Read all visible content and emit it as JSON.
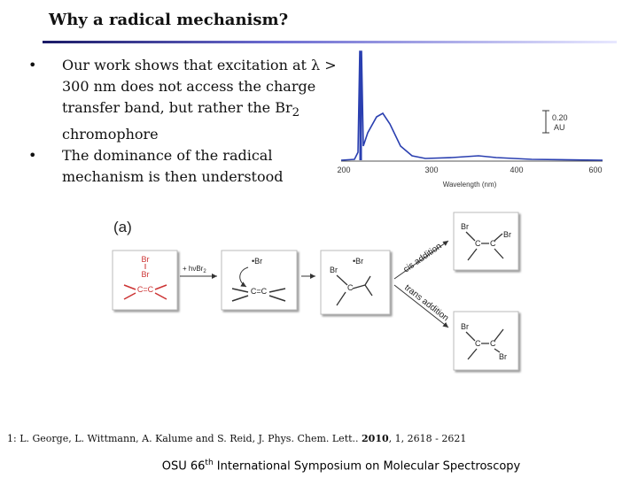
{
  "slide": {
    "title": "Why a radical mechanism?",
    "bullets": [
      {
        "text": "Our work shows that excitation at λ > 300 nm does not access the charge transfer band, but rather the Br",
        "sub": "2",
        "tail": " chromophore"
      },
      {
        "text": "The dominance of the radical mechanism is then understood"
      }
    ],
    "spectrum": {
      "x_tick_labels": [
        "200",
        "300",
        "400",
        "600"
      ],
      "x_label": "Wavelength (nm)",
      "scale_value": "0.20",
      "scale_unit": "AU"
    },
    "scheme": {
      "panel_label": "(a)",
      "reactant": {
        "br_top": "Br",
        "br_bottom": "Br",
        "carbons": "C=C"
      },
      "step1": {
        "text": "+ hν",
        "br": "Br",
        "sub": "2"
      },
      "intermediate1": {
        "radical": "•Br",
        "carbons": "C=C"
      },
      "intermediate2": {
        "br": "Br",
        "radical": "•Br",
        "carbon": "C"
      },
      "cis_label": "cis addition",
      "trans_label": "trans addition",
      "cis_product": {
        "br_left": "Br",
        "br_right": "Br",
        "c1": "C",
        "c2": "C"
      },
      "trans_product": {
        "br_top": "Br",
        "br_bottom": "Br",
        "c1": "C",
        "c2": "C"
      }
    },
    "footnote": {
      "pre": "1: L. George, L. Wittmann, A. Kalume and S. Reid, J. Phys. Chem. Lett.. ",
      "bold": "2010",
      "post": ", 1, 2618 - 2621"
    },
    "footer": {
      "pre": "OSU 66",
      "sup": "th",
      "post": " International Symposium on Molecular Spectroscopy"
    }
  }
}
